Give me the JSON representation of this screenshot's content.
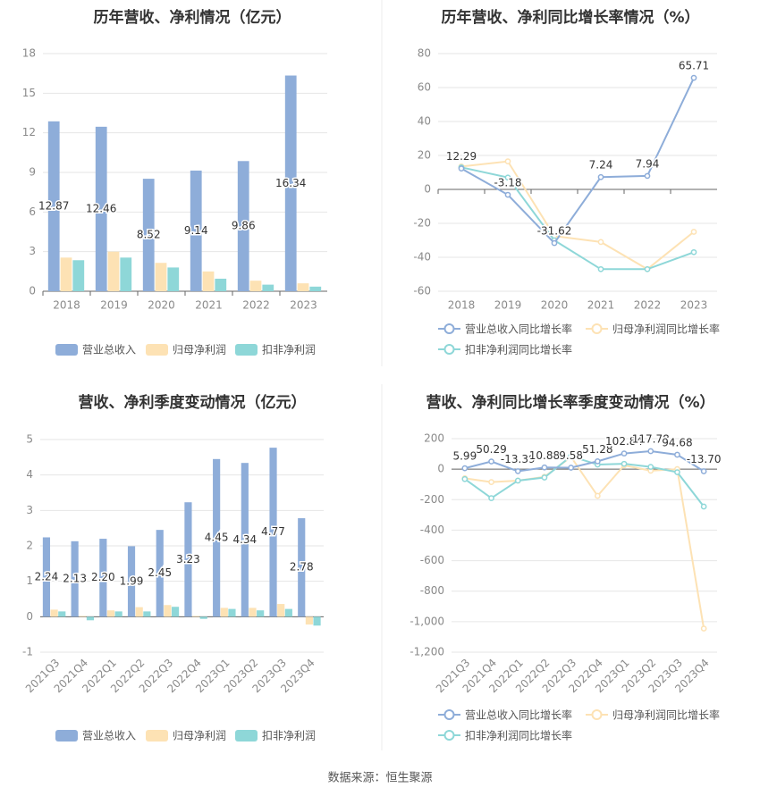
{
  "source": "数据来源：恒生聚源",
  "charts": [
    {
      "title": "历年营收、净利情况（亿元）",
      "legend": [
        "营业总收入",
        "归母净利润",
        "扣非净利润"
      ],
      "y_ticks": [
        "0",
        "3",
        "6",
        "9",
        "12",
        "15",
        "18"
      ],
      "data_labels": [
        "12.87",
        "12.46",
        "8.52",
        "9.14",
        "9.86",
        "16.34"
      ]
    },
    {
      "title": "历年营收、净利同比增长率情况（%）",
      "legend": [
        "营业总收入同比增长率",
        "归母净利润同比增长率",
        "扣非净利润同比增长率"
      ],
      "y_ticks": [
        "-60",
        "-40",
        "-20",
        "0",
        "20",
        "40",
        "60",
        "80"
      ],
      "data_labels": [
        "12.29",
        "-3.18",
        "-31.62",
        "7.24",
        "7.94",
        "65.71"
      ]
    },
    {
      "title": "营收、净利季度变动情况（亿元）",
      "legend": [
        "营业总收入",
        "归母净利润",
        "扣非净利润"
      ],
      "y_ticks": [
        "-1",
        "0",
        "1",
        "2",
        "3",
        "4",
        "5"
      ],
      "data_labels": [
        "2.24",
        "2.13",
        "2.20",
        "1.99",
        "2.45",
        "3.23",
        "4.45",
        "4.34",
        "4.77",
        "2.78"
      ]
    },
    {
      "title": "营收、净利同比增长率季度变动情况（%）",
      "legend": [
        "营业总收入同比增长率",
        "归母净利润同比增长率",
        "扣非净利润同比增长率"
      ],
      "y_ticks": [
        "-1,200",
        "-1,000",
        "-800",
        "-600",
        "-400",
        "-200",
        "0",
        "200"
      ],
      "data_labels": [
        "5.99",
        "50.29",
        "-13.39",
        "10.88",
        "9.58",
        "51.28",
        "102.84",
        "117.78",
        "94.68",
        "-13.70"
      ]
    }
  ],
  "chart_data": [
    {
      "type": "bar",
      "title": "历年营收、净利情况（亿元）",
      "categories": [
        "2018",
        "2019",
        "2020",
        "2021",
        "2022",
        "2023"
      ],
      "ylim": [
        0,
        18
      ],
      "legend_position": "bottom",
      "series": [
        {
          "name": "营业总收入",
          "color": "#8eadd9",
          "values": [
            12.87,
            12.46,
            8.52,
            9.14,
            9.86,
            16.34
          ]
        },
        {
          "name": "归母净利润",
          "color": "#fde2b4",
          "values": [
            2.55,
            3.0,
            2.15,
            1.5,
            0.8,
            0.6
          ]
        },
        {
          "name": "扣非净利润",
          "color": "#8ed7d8",
          "values": [
            2.35,
            2.55,
            1.8,
            0.95,
            0.5,
            0.35
          ]
        }
      ]
    },
    {
      "type": "line",
      "title": "历年营收、净利同比增长率情况（%）",
      "categories": [
        "2018",
        "2019",
        "2020",
        "2021",
        "2022",
        "2023"
      ],
      "ylim": [
        -60,
        80
      ],
      "legend_position": "bottom",
      "series": [
        {
          "name": "营业总收入同比增长率",
          "color": "#8eadd9",
          "values": [
            12.29,
            -3.18,
            -31.62,
            7.24,
            7.94,
            65.71
          ]
        },
        {
          "name": "归母净利润同比增长率",
          "color": "#fde2b4",
          "values": [
            13.5,
            16.5,
            -27.5,
            -31.0,
            -47.0,
            -25.0
          ]
        },
        {
          "name": "扣非净利润同比增长率",
          "color": "#8ed7d8",
          "values": [
            13.0,
            7.0,
            -30.0,
            -47.0,
            -47.0,
            -37.0
          ]
        }
      ]
    },
    {
      "type": "bar",
      "title": "营收、净利季度变动情况（亿元）",
      "categories": [
        "2021Q3",
        "2021Q4",
        "2022Q1",
        "2022Q2",
        "2022Q3",
        "2022Q4",
        "2023Q1",
        "2023Q2",
        "2023Q3",
        "2023Q4"
      ],
      "ylim": [
        -1,
        5
      ],
      "legend_position": "bottom",
      "series": [
        {
          "name": "营业总收入",
          "color": "#8eadd9",
          "values": [
            2.24,
            2.13,
            2.2,
            1.99,
            2.45,
            3.23,
            4.45,
            4.34,
            4.77,
            2.78
          ]
        },
        {
          "name": "归母净利润",
          "color": "#fde2b4",
          "values": [
            0.2,
            0.02,
            0.18,
            0.27,
            0.33,
            0.02,
            0.25,
            0.25,
            0.36,
            -0.22
          ]
        },
        {
          "name": "扣非净利润",
          "color": "#8ed7d8",
          "values": [
            0.15,
            -0.1,
            0.15,
            0.15,
            0.28,
            -0.06,
            0.22,
            0.18,
            0.22,
            -0.25
          ]
        }
      ]
    },
    {
      "type": "line",
      "title": "营收、净利同比增长率季度变动情况（%）",
      "categories": [
        "2021Q3",
        "2021Q4",
        "2022Q1",
        "2022Q2",
        "2022Q3",
        "2022Q4",
        "2023Q1",
        "2023Q2",
        "2023Q3",
        "2023Q4"
      ],
      "ylim": [
        -1200,
        200
      ],
      "legend_position": "bottom",
      "series": [
        {
          "name": "营业总收入同比增长率",
          "color": "#8eadd9",
          "values": [
            5.99,
            50.29,
            -13.39,
            10.88,
            9.58,
            51.28,
            102.84,
            117.78,
            94.68,
            -13.7
          ]
        },
        {
          "name": "归母净利润同比增长率",
          "color": "#fde2b4",
          "values": [
            -60,
            -85,
            -75,
            -50,
            80,
            -175,
            25,
            -10,
            0,
            -1045
          ]
        },
        {
          "name": "扣非净利润同比增长率",
          "color": "#8ed7d8",
          "values": [
            -65,
            -190,
            -75,
            -55,
            85,
            30,
            35,
            15,
            -20,
            -245
          ]
        }
      ]
    }
  ]
}
